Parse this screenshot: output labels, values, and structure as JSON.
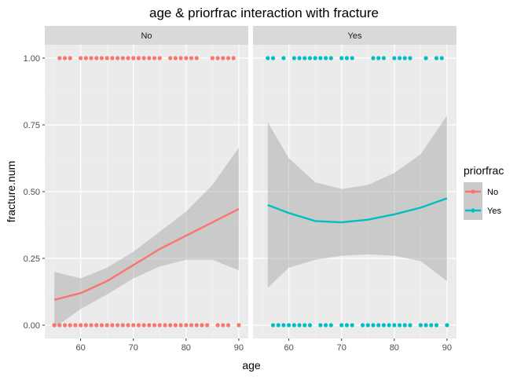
{
  "chart_data": {
    "type": "scatter",
    "title": "age & priorfrac  interaction with fracture",
    "xlabel": "age",
    "ylabel": "fracture.num",
    "xlim": [
      53.2,
      91.8
    ],
    "ylim": [
      -0.05,
      1.05
    ],
    "x_ticks": [
      60,
      70,
      80,
      90
    ],
    "x_tick_labels": [
      "60",
      "70",
      "80",
      "90"
    ],
    "y_ticks": [
      0,
      0.25,
      0.5,
      0.75,
      1
    ],
    "y_tick_labels": [
      "0.00",
      "0.25",
      "0.50",
      "0.75",
      "1.00"
    ],
    "grid": true,
    "legend": {
      "title": "priorfrac",
      "placement": "right",
      "entries": [
        {
          "label": "No",
          "color": "#F8766D"
        },
        {
          "label": "Yes",
          "color": "#00BFC4"
        }
      ]
    },
    "panels": [
      {
        "strip": "No",
        "color": "#F8766D",
        "points_y1": [
          56,
          57,
          58,
          60,
          61,
          62,
          63,
          64,
          65,
          66,
          67,
          68,
          69,
          70,
          71,
          72,
          73,
          74,
          75,
          77,
          78,
          79,
          80,
          81,
          82,
          85,
          86,
          87,
          88,
          89
        ],
        "points_y0": [
          55,
          56,
          57,
          58,
          59,
          60,
          61,
          62,
          63,
          64,
          65,
          66,
          67,
          68,
          69,
          70,
          71,
          72,
          73,
          74,
          75,
          76,
          77,
          78,
          79,
          80,
          81,
          82,
          83,
          84,
          86,
          87,
          88,
          90
        ],
        "smooth": {
          "x": [
            55,
            60,
            65,
            70,
            75,
            80,
            85,
            90
          ],
          "fit": [
            0.095,
            0.12,
            0.165,
            0.225,
            0.285,
            0.335,
            0.385,
            0.435
          ],
          "lower": [
            -0.01,
            0.06,
            0.115,
            0.175,
            0.22,
            0.245,
            0.245,
            0.205
          ],
          "upper": [
            0.2,
            0.175,
            0.215,
            0.275,
            0.35,
            0.425,
            0.525,
            0.665
          ]
        }
      },
      {
        "strip": "Yes",
        "color": "#00BFC4",
        "points_y1": [
          56,
          57,
          59,
          61,
          62,
          63,
          64,
          65,
          66,
          67,
          68,
          70,
          71,
          72,
          76,
          77,
          78,
          80,
          81,
          82,
          83,
          86,
          88,
          89
        ],
        "points_y0": [
          57,
          58,
          59,
          60,
          61,
          62,
          63,
          64,
          66,
          67,
          68,
          70,
          71,
          72,
          74,
          75,
          76,
          77,
          78,
          79,
          80,
          81,
          82,
          83,
          85,
          86,
          87,
          88,
          90
        ],
        "smooth": {
          "x": [
            56,
            60,
            65,
            70,
            75,
            80,
            85,
            90
          ],
          "fit": [
            0.45,
            0.42,
            0.39,
            0.385,
            0.395,
            0.415,
            0.44,
            0.475
          ],
          "lower": [
            0.14,
            0.215,
            0.245,
            0.26,
            0.265,
            0.26,
            0.24,
            0.165
          ],
          "upper": [
            0.76,
            0.625,
            0.535,
            0.51,
            0.525,
            0.57,
            0.64,
            0.785
          ]
        }
      }
    ]
  }
}
